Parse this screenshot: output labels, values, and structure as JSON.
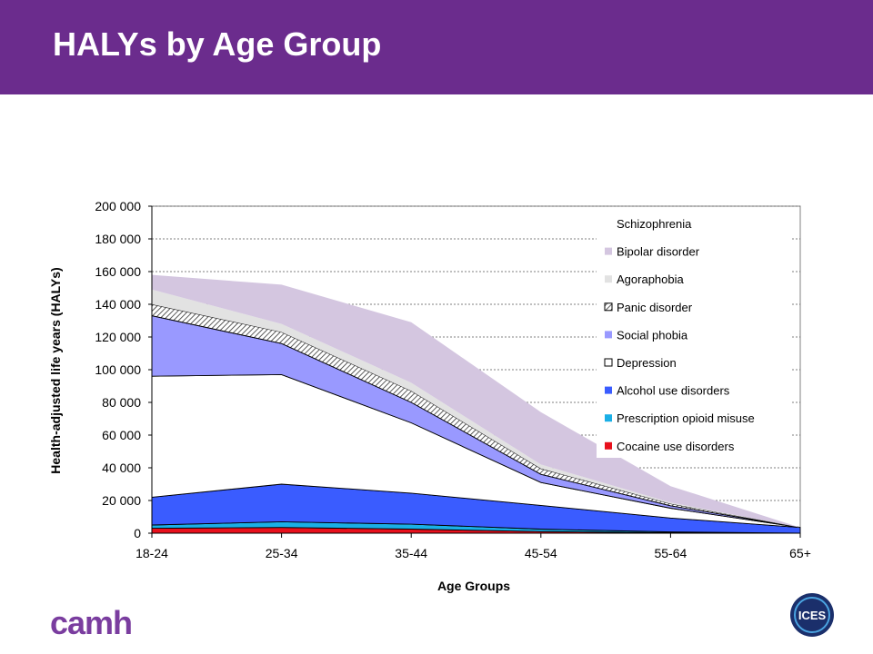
{
  "slide": {
    "title": "HALYs by Age Group",
    "title_bar_color": "#6b2c8d",
    "logo_left": "camh",
    "logo_right": "ICES"
  },
  "chart_data": {
    "type": "area",
    "stacked": true,
    "title": "",
    "xlabel": "Age Groups",
    "ylabel": "Health-adjusted life years (HALYs)",
    "categories": [
      "18-24",
      "25-34",
      "35-44",
      "45-54",
      "55-64",
      "65+"
    ],
    "ylim": [
      0,
      200000
    ],
    "yticks": [
      0,
      20000,
      40000,
      60000,
      80000,
      100000,
      120000,
      140000,
      160000,
      180000,
      200000
    ],
    "ytick_labels": [
      "0",
      "20 000",
      "40 000",
      "60 000",
      "80 000",
      "100 000",
      "120 000",
      "140 000",
      "160 000",
      "180 000",
      "200 000"
    ],
    "grid": "horizontal dashed",
    "legend_position": "top-right inside plot",
    "series": [
      {
        "name": "Cocaine use disorders",
        "color": "#e8101c",
        "values": [
          3000,
          3500,
          2500,
          1000,
          300,
          0
        ]
      },
      {
        "name": "Prescription opioid misuse",
        "color": "#1aafe6",
        "values": [
          2000,
          3500,
          3000,
          1500,
          500,
          0
        ]
      },
      {
        "name": "Alcohol use disorders",
        "color": "#3a5cff",
        "values": [
          17000,
          23000,
          19000,
          14500,
          8500,
          3500
        ]
      },
      {
        "name": "Depression",
        "color": "#ffffff",
        "values": [
          74000,
          67000,
          43000,
          14000,
          6000,
          0
        ]
      },
      {
        "name": "Social phobia",
        "color": "#9999ff",
        "values": [
          37000,
          19000,
          12500,
          5000,
          1500,
          0
        ]
      },
      {
        "name": "Panic disorder",
        "color": "#b0b0b0",
        "pattern": "hatch",
        "values": [
          7000,
          7000,
          7000,
          3500,
          1200,
          0
        ]
      },
      {
        "name": "Agoraphobia",
        "color": "#e2e2e2",
        "values": [
          9000,
          5000,
          5000,
          2500,
          800,
          0
        ]
      },
      {
        "name": "Bipolar disorder",
        "color": "#d4c6e0",
        "values": [
          9000,
          24000,
          37000,
          32000,
          10000,
          0
        ]
      },
      {
        "name": "Schizophrenia",
        "color": "#ffffff",
        "values": [
          0,
          0,
          0,
          0,
          0,
          0
        ]
      }
    ],
    "legend_order": [
      "Schizophrenia",
      "Bipolar disorder",
      "Agoraphobia",
      "Panic disorder",
      "Social phobia",
      "Depression",
      "Alcohol use disorders",
      "Prescription opioid misuse",
      "Cocaine use disorders"
    ]
  }
}
